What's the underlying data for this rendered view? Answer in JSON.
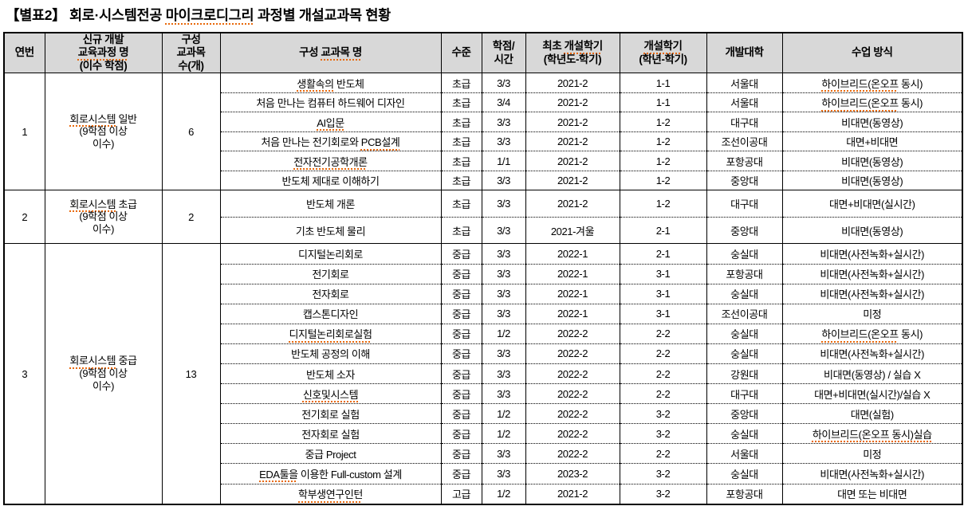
{
  "title": "【별표2】 회로·시스템전공 마이크로디그리 과정별 개설교과목 현황",
  "title_squiggle": "마이크로디그리",
  "colors": {
    "header_bg": "#d8d8d8",
    "squiggle_underline": "#e8680a",
    "border": "#000000",
    "text": "#000000"
  },
  "table": {
    "headers": [
      {
        "lines": [
          "연번"
        ]
      },
      {
        "lines": [
          "신규 개발",
          "교육과정 명",
          "(이수 학점)"
        ],
        "squiggle": "교육과정 명"
      },
      {
        "lines": [
          "구성",
          "교과목",
          "수(개)"
        ]
      },
      {
        "lines": [
          "구성 교과목 명"
        ],
        "squiggle": "교과목 명"
      },
      {
        "lines": [
          "수준"
        ]
      },
      {
        "lines": [
          "학점/",
          "시간"
        ]
      },
      {
        "lines": [
          "최초 개설학기",
          "(학년도-학기)"
        ],
        "squiggle": "개설학기"
      },
      {
        "lines": [
          "개설학기",
          "(학년-학기)"
        ],
        "squiggle": "개설학기"
      },
      {
        "lines": [
          "개발대학"
        ]
      },
      {
        "lines": [
          "수업 방식"
        ]
      }
    ],
    "groups": [
      {
        "no": "1",
        "program": {
          "lines": [
            "회로시스템 일반",
            "(9학점 이상",
            "이수)"
          ],
          "squiggle": "회로시스템"
        },
        "count": "6",
        "courses": [
          {
            "name": "생활속의 반도체",
            "name_squiggle": "생활속의",
            "level": "초급",
            "credit": "3/3",
            "first": "2021-2",
            "term": "1-1",
            "univ": "서울대",
            "method": "하이브리드(온오프 동시)",
            "method_squiggle": "하이브리드(온오프"
          },
          {
            "name": "처음 만나는 컴퓨터 하드웨어 디자인",
            "level": "초급",
            "credit": "3/4",
            "first": "2021-2",
            "term": "1-1",
            "univ": "서울대",
            "method": "하이브리드(온오프 동시)",
            "method_squiggle": "하이브리드(온오프"
          },
          {
            "name": "AI입문",
            "name_squiggle": "AI입문",
            "level": "초급",
            "credit": "3/3",
            "first": "2021-2",
            "term": "1-2",
            "univ": "대구대",
            "method": "비대면(동영상)"
          },
          {
            "name": "처음 만나는 전기회로와 PCB설계",
            "name_squiggle": "PCB설계",
            "level": "초급",
            "credit": "3/3",
            "first": "2021-2",
            "term": "1-2",
            "univ": "조선이공대",
            "method": "대면+비대면"
          },
          {
            "name": "전자전기공학개론",
            "name_squiggle": "전자전기공학개론",
            "level": "초급",
            "credit": "1/1",
            "first": "2021-2",
            "term": "1-2",
            "univ": "포항공대",
            "method": "비대면(동영상)"
          },
          {
            "name": "반도체 제대로 이해하기",
            "level": "초급",
            "credit": "3/3",
            "first": "2021-2",
            "term": "1-2",
            "univ": "중앙대",
            "method": "비대면(동영상)"
          }
        ]
      },
      {
        "no": "2",
        "program": {
          "lines": [
            "회로시스템 초급",
            "(9학점 이상",
            "이수)"
          ],
          "squiggle": "회로시스템"
        },
        "count": "2",
        "courses": [
          {
            "name": "반도체 개론",
            "level": "초급",
            "credit": "3/3",
            "first": "2021-2",
            "term": "1-2",
            "univ": "대구대",
            "method": "대면+비대면(실시간)"
          },
          {
            "name": "기초 반도체 물리",
            "level": "초급",
            "credit": "3/3",
            "first": "2021-겨울",
            "term": "2-1",
            "univ": "중앙대",
            "method": "비대면(동영상)"
          }
        ]
      },
      {
        "no": "3",
        "program": {
          "lines": [
            "회로시스템 중급",
            "(9학점 이상",
            "이수)"
          ],
          "squiggle": "회로시스템"
        },
        "count": "13",
        "courses": [
          {
            "name": "디지털논리회로",
            "level": "중급",
            "credit": "3/3",
            "first": "2022-1",
            "term": "2-1",
            "univ": "숭실대",
            "method": "비대면(사전녹화+실시간)"
          },
          {
            "name": "전기회로",
            "level": "중급",
            "credit": "3/3",
            "first": "2022-1",
            "term": "3-1",
            "univ": "포항공대",
            "method": "비대면(사전녹화+실시간)"
          },
          {
            "name": "전자회로",
            "level": "중급",
            "credit": "3/3",
            "first": "2022-1",
            "term": "3-1",
            "univ": "숭실대",
            "method": "비대면(사전녹화+실시간)"
          },
          {
            "name": "캡스톤디자인",
            "level": "중급",
            "credit": "3/3",
            "first": "2022-1",
            "term": "3-1",
            "univ": "조선이공대",
            "method": "미정"
          },
          {
            "name": "디지털논리회로실험",
            "name_squiggle": "디지털논리회로실험",
            "level": "중급",
            "credit": "1/2",
            "first": "2022-2",
            "term": "2-2",
            "univ": "숭실대",
            "method": "하이브리드(온오프 동시)",
            "method_squiggle": "하이브리드(온오프"
          },
          {
            "name": "반도체 공정의 이해",
            "level": "중급",
            "credit": "3/3",
            "first": "2022-2",
            "term": "2-2",
            "univ": "숭실대",
            "method": "비대면(사전녹화+실시간)"
          },
          {
            "name": "반도체 소자",
            "level": "중급",
            "credit": "3/3",
            "first": "2022-2",
            "term": "2-2",
            "univ": "강원대",
            "method": "비대면(동영상) / 실습 X"
          },
          {
            "name": "신호및시스템",
            "name_squiggle": "신호및시스템",
            "level": "중급",
            "credit": "3/3",
            "first": "2022-2",
            "term": "2-2",
            "univ": "대구대",
            "method": "대면+비대면(실시간)/실습 X"
          },
          {
            "name": "전기회로 실험",
            "level": "중급",
            "credit": "1/2",
            "first": "2022-2",
            "term": "3-2",
            "univ": "중앙대",
            "method": "대면(실험)"
          },
          {
            "name": "전자회로 실험",
            "level": "중급",
            "credit": "1/2",
            "first": "2022-2",
            "term": "3-2",
            "univ": "숭실대",
            "method": "하이브리드(온오프 동시)실습",
            "method_squiggle": "하이브리드(온오프 동시)실습"
          },
          {
            "name": "중급 Project",
            "level": "중급",
            "credit": "3/3",
            "first": "2022-2",
            "term": "2-2",
            "univ": "서울대",
            "method": "미정"
          },
          {
            "name": "EDA툴을 이용한 Full-custom 설계",
            "name_squiggle": "EDA툴을",
            "level": "중급",
            "credit": "3/3",
            "first": "2023-2",
            "term": "3-2",
            "univ": "숭실대",
            "method": "비대면(사전녹화+실시간)"
          },
          {
            "name": "학부생연구인턴",
            "name_squiggle": "학부생연구인턴",
            "level": "고급",
            "credit": "1/2",
            "first": "2021-2",
            "term": "3-2",
            "univ": "포항공대",
            "method": "대면 또는 비대면"
          }
        ]
      }
    ]
  }
}
